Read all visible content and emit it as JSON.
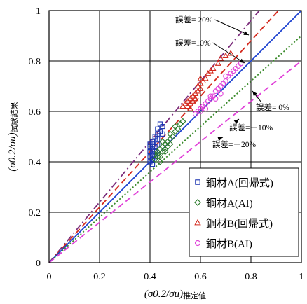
{
  "chart_data": {
    "type": "scatter",
    "title": "",
    "xlabel": {
      "main": "(σ0.2/σu)",
      "sub": "推定値"
    },
    "ylabel": {
      "main": "(σ0.2/σu)",
      "sub": "試験結果"
    },
    "xlim": [
      0,
      1
    ],
    "ylim": [
      0,
      1
    ],
    "x_ticks": [
      "0",
      "0.2",
      "0.4",
      "0.6",
      "0.8",
      "1"
    ],
    "y_ticks": [
      "0",
      "0.2",
      "0.4",
      "0.6",
      "0.8",
      "1"
    ],
    "grid": true,
    "legend_position": "bottom-right",
    "reference_lines": [
      {
        "label": "誤差= 20%",
        "slope": 1.2,
        "color": "#7b2c7b",
        "style": "dashdot"
      },
      {
        "label": "誤差=10%",
        "slope": 1.1,
        "color": "#d42a1e",
        "style": "dashed"
      },
      {
        "label": "誤差= 0%",
        "slope": 1.0,
        "color": "#1a3fcf",
        "style": "solid"
      },
      {
        "label": "誤差=－10%",
        "slope": 0.9,
        "color": "#3a8a2a",
        "style": "dotted"
      },
      {
        "label": "誤差=－20%",
        "slope": 0.8,
        "color": "#e040d8",
        "style": "dashed"
      }
    ],
    "series": [
      {
        "name": "鋼材A(回帰式)",
        "marker": "square",
        "color": "#1a33b0",
        "points": [
          [
            0.4,
            0.4
          ],
          [
            0.4,
            0.42
          ],
          [
            0.4,
            0.44
          ],
          [
            0.4,
            0.46
          ],
          [
            0.4,
            0.47
          ],
          [
            0.41,
            0.41
          ],
          [
            0.41,
            0.43
          ],
          [
            0.41,
            0.45
          ],
          [
            0.41,
            0.47
          ],
          [
            0.41,
            0.48
          ],
          [
            0.42,
            0.42
          ],
          [
            0.42,
            0.44
          ],
          [
            0.42,
            0.46
          ],
          [
            0.42,
            0.49
          ],
          [
            0.42,
            0.5
          ],
          [
            0.43,
            0.47
          ],
          [
            0.43,
            0.51
          ],
          [
            0.43,
            0.53
          ],
          [
            0.44,
            0.52
          ],
          [
            0.44,
            0.55
          ],
          [
            0.45,
            0.54
          ],
          [
            0.45,
            0.51
          ],
          [
            0.41,
            0.39
          ],
          [
            0.4,
            0.44
          ],
          [
            0.43,
            0.49
          ]
        ]
      },
      {
        "name": "鋼材A(AI)",
        "marker": "diamond",
        "color": "#2a7a2a",
        "points": [
          [
            0.42,
            0.41
          ],
          [
            0.43,
            0.43
          ],
          [
            0.43,
            0.44
          ],
          [
            0.44,
            0.42
          ],
          [
            0.44,
            0.45
          ],
          [
            0.45,
            0.44
          ],
          [
            0.45,
            0.46
          ],
          [
            0.45,
            0.48
          ],
          [
            0.46,
            0.45
          ],
          [
            0.46,
            0.47
          ],
          [
            0.47,
            0.48
          ],
          [
            0.47,
            0.46
          ],
          [
            0.48,
            0.49
          ],
          [
            0.48,
            0.51
          ],
          [
            0.49,
            0.5
          ],
          [
            0.5,
            0.52
          ],
          [
            0.5,
            0.54
          ],
          [
            0.51,
            0.53
          ],
          [
            0.52,
            0.55
          ],
          [
            0.53,
            0.56
          ],
          [
            0.44,
            0.4
          ],
          [
            0.43,
            0.42
          ],
          [
            0.46,
            0.44
          ],
          [
            0.48,
            0.47
          ]
        ]
      },
      {
        "name": "鋼材B(回帰式)",
        "marker": "triangle",
        "color": "#d42a1e",
        "points": [
          [
            0.53,
            0.62
          ],
          [
            0.54,
            0.63
          ],
          [
            0.55,
            0.62
          ],
          [
            0.55,
            0.64
          ],
          [
            0.56,
            0.63
          ],
          [
            0.56,
            0.65
          ],
          [
            0.57,
            0.64
          ],
          [
            0.57,
            0.66
          ],
          [
            0.58,
            0.65
          ],
          [
            0.58,
            0.67
          ],
          [
            0.59,
            0.68
          ],
          [
            0.59,
            0.7
          ],
          [
            0.6,
            0.69
          ],
          [
            0.6,
            0.71
          ],
          [
            0.61,
            0.72
          ],
          [
            0.62,
            0.73
          ],
          [
            0.63,
            0.75
          ],
          [
            0.64,
            0.76
          ],
          [
            0.65,
            0.77
          ],
          [
            0.67,
            0.79
          ],
          [
            0.68,
            0.81
          ],
          [
            0.7,
            0.82
          ],
          [
            0.72,
            0.83
          ],
          [
            0.56,
            0.61
          ],
          [
            0.6,
            0.73
          ]
        ]
      },
      {
        "name": "鋼材B(AI)",
        "marker": "circle",
        "color": "#e040d8",
        "points": [
          [
            0.58,
            0.59
          ],
          [
            0.59,
            0.6
          ],
          [
            0.6,
            0.61
          ],
          [
            0.6,
            0.6
          ],
          [
            0.61,
            0.62
          ],
          [
            0.62,
            0.63
          ],
          [
            0.62,
            0.61
          ],
          [
            0.63,
            0.64
          ],
          [
            0.64,
            0.65
          ],
          [
            0.64,
            0.66
          ],
          [
            0.65,
            0.66
          ],
          [
            0.66,
            0.68
          ],
          [
            0.67,
            0.69
          ],
          [
            0.68,
            0.7
          ],
          [
            0.69,
            0.71
          ],
          [
            0.7,
            0.72
          ],
          [
            0.71,
            0.74
          ],
          [
            0.72,
            0.75
          ],
          [
            0.73,
            0.76
          ],
          [
            0.74,
            0.77
          ],
          [
            0.75,
            0.78
          ],
          [
            0.76,
            0.79
          ],
          [
            0.7,
            0.74
          ],
          [
            0.66,
            0.65
          ],
          [
            0.68,
            0.67
          ]
        ]
      }
    ]
  }
}
